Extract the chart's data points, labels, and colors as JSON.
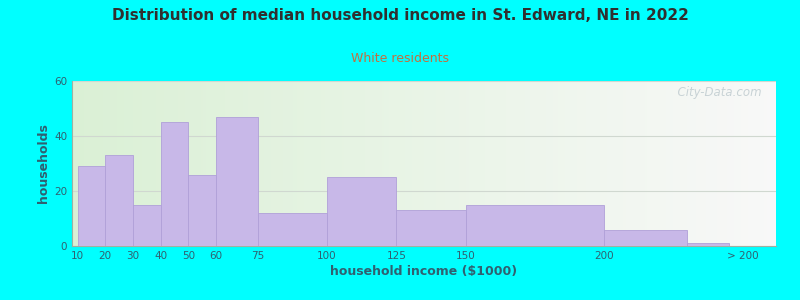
{
  "title": "Distribution of median household income in St. Edward, NE in 2022",
  "subtitle": "White residents",
  "xlabel": "household income ($1000)",
  "ylabel": "households",
  "background_outer": "#00FFFF",
  "background_inner_left": "#daf0d5",
  "background_inner_right": "#f8f8f8",
  "bar_color": "#c8b8e8",
  "bar_edge_color": "#b0a0d8",
  "title_color": "#303030",
  "subtitle_color": "#c07040",
  "axis_label_color": "#306070",
  "tick_color": "#306070",
  "categories": [
    "10",
    "20",
    "30",
    "40",
    "50",
    "60",
    "75",
    "100",
    "125",
    "150",
    "200",
    "> 200"
  ],
  "values": [
    29,
    33,
    15,
    45,
    26,
    47,
    12,
    25,
    13,
    15,
    6,
    1
  ],
  "ylim": [
    0,
    60
  ],
  "yticks": [
    0,
    20,
    40,
    60
  ],
  "x_positions": [
    10,
    20,
    30,
    40,
    50,
    60,
    75,
    100,
    125,
    150,
    200,
    230
  ],
  "bar_widths": [
    10,
    10,
    10,
    10,
    10,
    15,
    25,
    25,
    25,
    50,
    30,
    15
  ],
  "tick_positions": [
    10,
    20,
    30,
    40,
    50,
    60,
    75,
    100,
    125,
    150,
    200,
    250
  ],
  "xlim": [
    8,
    262
  ],
  "watermark": "  City-Data.com",
  "grid_color": "#d0d8d0",
  "spine_color": "#a0b0a0"
}
